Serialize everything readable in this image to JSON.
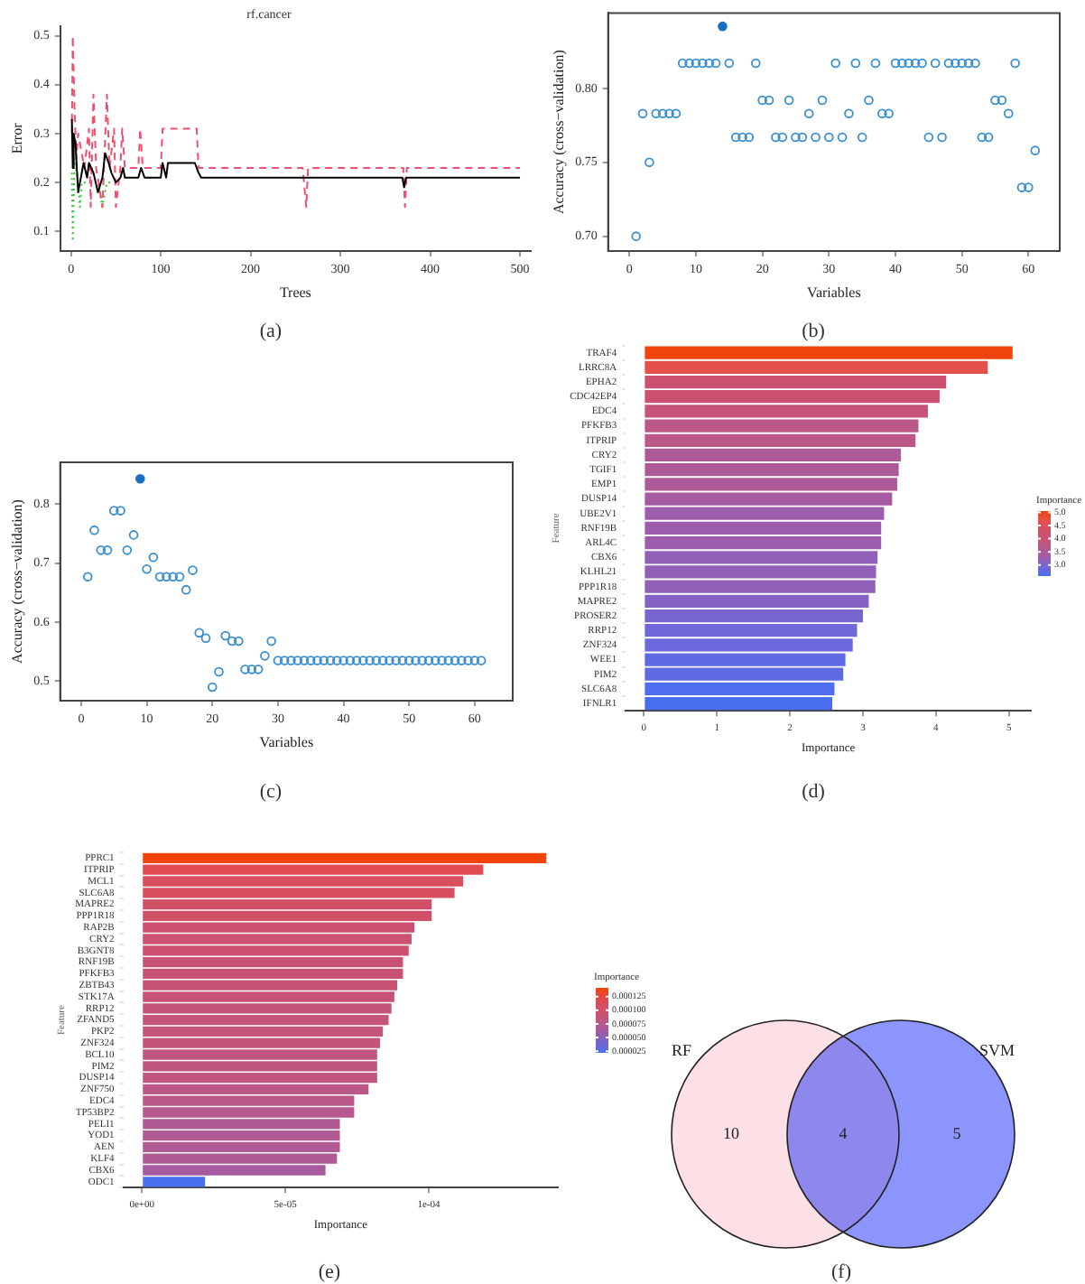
{
  "chart_data": [
    {
      "type": "line",
      "title": "rf.cancer",
      "xlabel": "Trees",
      "ylabel": "Error",
      "annotations": [
        "(a)"
      ],
      "marker": "none",
      "xlim": [
        -12,
        512
      ],
      "ylim": [
        0.06,
        0.52
      ],
      "xticks": [
        0,
        100,
        200,
        300,
        400,
        500
      ],
      "yticks": [
        0.1,
        0.2,
        0.3,
        0.4,
        0.5
      ],
      "series": [
        {
          "color": "#000000",
          "line_style": "solid",
          "x": [
            1,
            2,
            3,
            5,
            8,
            10,
            14,
            18,
            20,
            25,
            30,
            35,
            38,
            42,
            45,
            50,
            55,
            58,
            60,
            75,
            78,
            82,
            100,
            102,
            106,
            108,
            138,
            140,
            142,
            145,
            369,
            371,
            373,
            500
          ],
          "values": [
            0.33,
            0.23,
            0.3,
            0.28,
            0.18,
            0.2,
            0.24,
            0.21,
            0.24,
            0.22,
            0.18,
            0.21,
            0.26,
            0.24,
            0.22,
            0.2,
            0.21,
            0.23,
            0.21,
            0.21,
            0.23,
            0.21,
            0.21,
            0.24,
            0.21,
            0.24,
            0.24,
            0.23,
            0.22,
            0.21,
            0.21,
            0.19,
            0.21,
            0.21
          ]
        },
        {
          "color": "#f0506e",
          "line_style": "dashed",
          "x": [
            1,
            2,
            4,
            6,
            8,
            15,
            20,
            22,
            25,
            28,
            35,
            40,
            43,
            48,
            50,
            55,
            57,
            60,
            75,
            77,
            80,
            100,
            102,
            140,
            142,
            258,
            262,
            264,
            370,
            372,
            374,
            500
          ],
          "values": [
            0.3,
            0.5,
            0.35,
            0.25,
            0.3,
            0.23,
            0.31,
            0.15,
            0.38,
            0.23,
            0.15,
            0.38,
            0.23,
            0.31,
            0.15,
            0.23,
            0.31,
            0.23,
            0.23,
            0.31,
            0.23,
            0.23,
            0.31,
            0.31,
            0.23,
            0.23,
            0.15,
            0.23,
            0.23,
            0.15,
            0.23,
            0.23
          ]
        },
        {
          "color": "#33cc33",
          "line_style": "dotted",
          "x": [
            1,
            2,
            4,
            8,
            10,
            12,
            30,
            35,
            40,
            45
          ],
          "values": [
            0.22,
            0.08,
            0.25,
            0.2,
            0.15,
            0.2,
            0.2,
            0.15,
            0.2,
            0.2
          ]
        }
      ]
    },
    {
      "type": "scatter",
      "xlabel": "Variables",
      "ylabel": "Accuracy (cross−validation)",
      "annotations": [
        "(b)"
      ],
      "marker": "circle",
      "xlim": [
        -3.2,
        64.7
      ],
      "ylim": [
        0.69,
        0.851
      ],
      "xticks": [
        0,
        10,
        20,
        30,
        40,
        50,
        60
      ],
      "yticks": [
        {
          "value": 0.7,
          "label": "0.70"
        },
        {
          "value": 0.75,
          "label": "0.75"
        },
        {
          "value": 0.8,
          "label": "0.80"
        }
      ],
      "series": [
        {
          "color": "#3a8fd0",
          "x": [
            1,
            2,
            3,
            4,
            5,
            6,
            7,
            8,
            9,
            10,
            11,
            12,
            13,
            15,
            16,
            17,
            18,
            19,
            20,
            21,
            22,
            23,
            24,
            25,
            26,
            27,
            28,
            29,
            30,
            31,
            32,
            33,
            34,
            35,
            36,
            37,
            38,
            39,
            40,
            41,
            42,
            43,
            44,
            45,
            46,
            47,
            48,
            49,
            50,
            51,
            52,
            53,
            54,
            55,
            56,
            57,
            58,
            59,
            60,
            61
          ],
          "values": [
            0.7,
            0.783,
            0.75,
            0.783,
            0.783,
            0.783,
            0.783,
            0.817,
            0.817,
            0.817,
            0.817,
            0.817,
            0.817,
            0.817,
            0.767,
            0.767,
            0.767,
            0.817,
            0.792,
            0.792,
            0.767,
            0.767,
            0.792,
            0.767,
            0.767,
            0.783,
            0.767,
            0.792,
            0.767,
            0.817,
            0.767,
            0.783,
            0.817,
            0.767,
            0.792,
            0.817,
            0.783,
            0.783,
            0.817,
            0.817,
            0.817,
            0.817,
            0.817,
            0.767,
            0.817,
            0.767,
            0.817,
            0.817,
            0.817,
            0.817,
            0.817,
            0.767,
            0.767,
            0.792,
            0.792,
            0.783,
            0.817,
            0.733,
            0.733,
            0.758
          ]
        },
        {
          "color": "#1a6fc0",
          "x": [
            14
          ],
          "values": [
            0.842
          ]
        }
      ]
    },
    {
      "type": "scatter",
      "xlabel": "Variables",
      "ylabel": "Accuracy (cross−validation)",
      "annotations": [
        "(c)"
      ],
      "marker": "circle",
      "xlim": [
        -3.2,
        65.8
      ],
      "ylim": [
        0.467,
        0.871
      ],
      "xticks": [
        0,
        10,
        20,
        30,
        40,
        50,
        60
      ],
      "yticks": [
        0.5,
        0.6,
        0.7,
        0.8
      ],
      "series": [
        {
          "color": "#3a8fd0",
          "x": [
            1,
            2,
            3,
            4,
            5,
            6,
            7,
            8,
            10,
            11,
            12,
            13,
            14,
            15,
            16,
            17,
            18,
            19,
            20,
            21,
            22,
            23,
            24,
            25,
            26,
            27,
            28,
            29,
            30,
            31,
            32,
            33,
            34,
            35,
            36,
            37,
            38,
            39,
            40,
            41,
            42,
            43,
            44,
            45,
            46,
            47,
            48,
            49,
            50,
            51,
            52,
            53,
            54,
            55,
            56,
            57,
            58,
            59,
            60,
            61
          ],
          "values": [
            0.677,
            0.756,
            0.722,
            0.722,
            0.789,
            0.789,
            0.722,
            0.748,
            0.69,
            0.71,
            0.677,
            0.677,
            0.677,
            0.677,
            0.655,
            0.688,
            0.582,
            0.573,
            0.49,
            0.516,
            0.577,
            0.568,
            0.568,
            0.52,
            0.52,
            0.52,
            0.543,
            0.568,
            0.535,
            0.535,
            0.535,
            0.535,
            0.535,
            0.535,
            0.535,
            0.535,
            0.535,
            0.535,
            0.535,
            0.535,
            0.535,
            0.535,
            0.535,
            0.535,
            0.535,
            0.535,
            0.535,
            0.535,
            0.535,
            0.535,
            0.535,
            0.535,
            0.535,
            0.535,
            0.535,
            0.535,
            0.535,
            0.535,
            0.535,
            0.535
          ]
        },
        {
          "color": "#1a6fc0",
          "x": [
            9
          ],
          "values": [
            0.843
          ]
        }
      ]
    },
    {
      "type": "bar",
      "orientation": "horizontal",
      "xlabel": "Importance",
      "ylabel": "Feature",
      "clabel": "Importance",
      "annotations": [
        "(d)"
      ],
      "xlim": [
        -0.25,
        5.3
      ],
      "xticks": [
        0,
        1,
        2,
        3,
        4,
        5
      ],
      "clim": [
        2.58,
        5.05
      ],
      "cticks": [
        {
          "value": 3,
          "label": "3.0"
        },
        {
          "value": 3.5,
          "label": "3.5"
        },
        {
          "value": 4,
          "label": "4.0"
        },
        {
          "value": 4.5,
          "label": "4.5"
        },
        {
          "value": 5,
          "label": "5.0"
        }
      ],
      "categories": [
        "TRAF4",
        "LRRC8A",
        "EPHA2",
        "CDC42EP4",
        "EDC4",
        "PFKFB3",
        "ITPRIP",
        "CRY2",
        "TGIF1",
        "EMP1",
        "DUSP14",
        "UBE2V1",
        "RNF19B",
        "ARL4C",
        "CBX6",
        "KLHL21",
        "PPP1R18",
        "MAPRE2",
        "PROSER2",
        "RRP12",
        "ZNF324",
        "WEE1",
        "PIM2",
        "SLC6A8",
        "IFNLR1"
      ],
      "values": [
        5.05,
        4.71,
        4.14,
        4.05,
        3.89,
        3.76,
        3.72,
        3.52,
        3.49,
        3.47,
        3.4,
        3.29,
        3.25,
        3.25,
        3.2,
        3.18,
        3.17,
        3.08,
        3.0,
        2.92,
        2.86,
        2.76,
        2.73,
        2.61,
        2.58
      ],
      "colors": [
        "#f0440c",
        "#e4504a",
        "#cc5070",
        "#cc5070",
        "#c65478",
        "#bc5888",
        "#bc5888",
        "#ac5a98",
        "#ac5a98",
        "#ac5a98",
        "#a65aa0",
        "#9c5eac",
        "#9c5eac",
        "#9c5eac",
        "#9060b8",
        "#9060b8",
        "#9060b8",
        "#8462c4",
        "#7866d0",
        "#7068d6",
        "#6a68dc",
        "#5e6ae2",
        "#5e6ae2",
        "#4e6eee",
        "#4a6ef0"
      ]
    },
    {
      "type": "bar",
      "orientation": "horizontal",
      "xlabel": "Importance",
      "ylabel": "Feature",
      "clabel": "Importance",
      "annotations": [
        "(e)"
      ],
      "xlim": [
        -6.5e-06,
        0.000145
      ],
      "xticks": [
        {
          "value": 0,
          "label": "0e+00"
        },
        {
          "value": 5e-05,
          "label": "5e-05"
        },
        {
          "value": 0.0001,
          "label": "1e-04"
        }
      ],
      "clim": [
        2.2e-05,
        0.000141
      ],
      "cticks": [
        {
          "value": 2.5e-05,
          "label": "0.000025"
        },
        {
          "value": 5e-05,
          "label": "0.000050"
        },
        {
          "value": 7.5e-05,
          "label": "0.000075"
        },
        {
          "value": 0.0001,
          "label": "0.000100"
        },
        {
          "value": 0.000125,
          "label": "0.000125"
        }
      ],
      "categories": [
        "PPRC1",
        "ITPRIP",
        "MCL1",
        "SLC6A8",
        "MAPRE2",
        "PPP1R18",
        "RAP2B",
        "CRY2",
        "B3GNT8",
        "RNF19B",
        "PFKFB3",
        "ZBTB43",
        "STK17A",
        "RRP12",
        "ZFAND5",
        "PKP2",
        "ZNF324",
        "BCL10",
        "PIM2",
        "DUSP14",
        "ZNF750",
        "EDC4",
        "TP53BP2",
        "PELI1",
        "YOD1",
        "AEN",
        "KLF4",
        "CBX6",
        "ODC1"
      ],
      "values": [
        0.000141,
        0.000119,
        0.000112,
        0.000109,
        0.000101,
        0.000101,
        9.5e-05,
        9.4e-05,
        9.3e-05,
        9.1e-05,
        9.1e-05,
        8.9e-05,
        8.8e-05,
        8.7e-05,
        8.6e-05,
        8.4e-05,
        8.3e-05,
        8.2e-05,
        8.2e-05,
        8.2e-05,
        7.9e-05,
        7.4e-05,
        7.4e-05,
        6.9e-05,
        6.9e-05,
        6.9e-05,
        6.8e-05,
        6.4e-05,
        2.2e-05
      ],
      "colors": [
        "#f0440c",
        "#e04a50",
        "#d84e5c",
        "#d64e60",
        "#d05068",
        "#d05068",
        "#cc5070",
        "#cc5070",
        "#cc5070",
        "#c85274",
        "#c85274",
        "#c85274",
        "#c85274",
        "#c45478",
        "#c45478",
        "#c45478",
        "#c45478",
        "#c05680",
        "#c05680",
        "#c05680",
        "#bc5888",
        "#bc5888",
        "#b85890",
        "#b05a94",
        "#b05a94",
        "#b05a94",
        "#b05a94",
        "#a65aa0",
        "#4a6ef0"
      ]
    },
    {
      "type": "other",
      "data_labels": true,
      "annotations": [
        "(f)"
      ],
      "categories": [
        "RF",
        null,
        "SVM"
      ],
      "values": [
        10,
        4,
        5
      ],
      "colors": [
        "#fde0e6",
        "#8e88ee",
        "#8c95fb"
      ]
    }
  ]
}
